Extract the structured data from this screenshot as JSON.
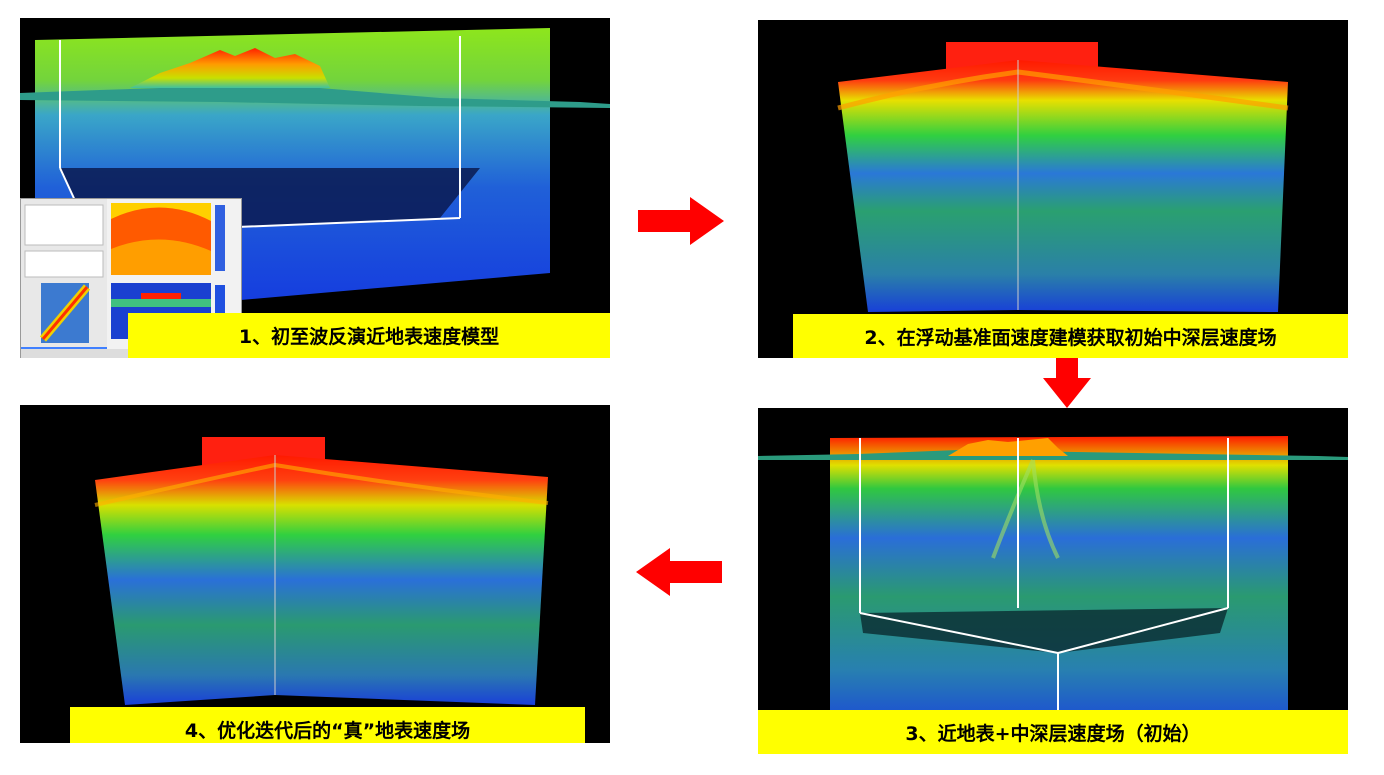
{
  "steps": [
    {
      "number": "1",
      "caption": "1、初至波反演近地表速度模型"
    },
    {
      "number": "2",
      "caption": "2、在浮动基准面速度建模获取初始中深层速度场"
    },
    {
      "number": "3",
      "caption": "3、近地表+中深层速度场（初始）"
    },
    {
      "number": "4",
      "caption": "4、优化迭代后的“真”地表速度场"
    }
  ],
  "flow": [
    "1 → 2",
    "2 → 3",
    "3 → 4"
  ],
  "colors": {
    "caption_bg": "#ffff00",
    "arrow": "#ff0000",
    "panel_bg": "#000000"
  }
}
